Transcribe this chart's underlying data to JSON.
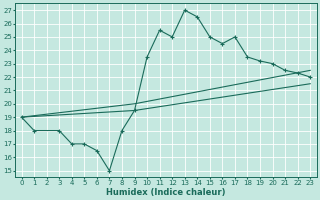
{
  "xlabel": "Humidex (Indice chaleur)",
  "ylabel": "",
  "xlim": [
    -0.5,
    23.5
  ],
  "ylim": [
    14.5,
    27.5
  ],
  "xticks": [
    0,
    1,
    2,
    3,
    4,
    5,
    6,
    7,
    8,
    9,
    10,
    11,
    12,
    13,
    14,
    15,
    16,
    17,
    18,
    19,
    20,
    21,
    22,
    23
  ],
  "yticks": [
    15,
    16,
    17,
    18,
    19,
    20,
    21,
    22,
    23,
    24,
    25,
    26,
    27
  ],
  "bg_color": "#c5e8e0",
  "line_color": "#1a6b5a",
  "grid_color": "#ffffff",
  "line1_x": [
    0,
    1,
    3,
    4,
    5,
    6,
    7,
    8,
    9,
    10,
    11,
    12,
    13,
    14,
    15,
    16,
    17,
    18,
    19,
    20,
    21,
    22,
    23
  ],
  "line1_y": [
    19,
    18,
    18,
    17,
    17,
    16.5,
    15,
    18,
    19.5,
    23.5,
    25.5,
    25,
    27,
    26.5,
    25,
    24.5,
    25,
    23.5,
    23.2,
    23,
    22.5,
    22.3,
    22
  ],
  "line2_x": [
    0,
    9,
    23
  ],
  "line2_y": [
    19.0,
    20.0,
    22.5
  ],
  "line3_x": [
    0,
    9,
    23
  ],
  "line3_y": [
    19.0,
    19.5,
    21.5
  ],
  "tick_fontsize": 5,
  "xlabel_fontsize": 6
}
